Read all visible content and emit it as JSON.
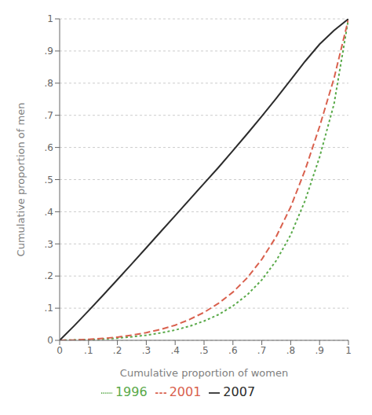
{
  "chart_data": {
    "type": "line",
    "xlabel": "Cumulative proportion of women",
    "ylabel": "Cumulative proportion of men",
    "xlim": [
      0,
      1
    ],
    "ylim": [
      0,
      1
    ],
    "xticks": [
      0,
      {
        "value": 0.1,
        "label": ".1"
      },
      {
        "value": 0.2,
        "label": ".2"
      },
      {
        "value": 0.3,
        "label": ".3"
      },
      {
        "value": 0.4,
        "label": ".4"
      },
      {
        "value": 0.5,
        "label": ".5"
      },
      {
        "value": 0.6,
        "label": ".6"
      },
      {
        "value": 0.7,
        "label": ".7"
      },
      {
        "value": 0.8,
        "label": ".8"
      },
      {
        "value": 0.9,
        "label": ".9"
      },
      1
    ],
    "yticks": [
      0,
      {
        "value": 0.1,
        "label": ".1"
      },
      {
        "value": 0.2,
        "label": ".2"
      },
      {
        "value": 0.3,
        "label": ".3"
      },
      {
        "value": 0.4,
        "label": ".4"
      },
      {
        "value": 0.5,
        "label": ".5"
      },
      {
        "value": 0.6,
        "label": ".6"
      },
      {
        "value": 0.7,
        "label": ".7"
      },
      {
        "value": 0.8,
        "label": ".8"
      },
      {
        "value": 0.9,
        "label": ".9"
      },
      1
    ],
    "grid": "y",
    "legend": "bottom",
    "x": [
      0.0,
      0.05,
      0.1,
      0.15,
      0.2,
      0.25,
      0.3,
      0.35,
      0.4,
      0.45,
      0.5,
      0.55,
      0.6,
      0.65,
      0.7,
      0.75,
      0.8,
      0.85,
      0.9,
      0.95,
      1.0
    ],
    "series": [
      {
        "name": "1996",
        "color": "#5aaa4a",
        "line_style": "dotted",
        "values": [
          0.0,
          0.001,
          0.002,
          0.004,
          0.007,
          0.011,
          0.016,
          0.023,
          0.032,
          0.044,
          0.06,
          0.08,
          0.107,
          0.142,
          0.188,
          0.248,
          0.328,
          0.435,
          0.57,
          0.735,
          1.0
        ]
      },
      {
        "name": "2001",
        "color": "#d9614e",
        "line_style": "dashed",
        "values": [
          0.0,
          0.001,
          0.003,
          0.006,
          0.01,
          0.016,
          0.024,
          0.034,
          0.047,
          0.065,
          0.087,
          0.115,
          0.15,
          0.195,
          0.252,
          0.323,
          0.415,
          0.53,
          0.665,
          0.815,
          1.0
        ]
      },
      {
        "name": "2007",
        "color": "#2c2c2c",
        "line_style": "solid",
        "values": [
          0.0,
          0.045,
          0.092,
          0.14,
          0.189,
          0.238,
          0.288,
          0.338,
          0.388,
          0.438,
          0.488,
          0.538,
          0.59,
          0.643,
          0.697,
          0.753,
          0.81,
          0.868,
          0.921,
          0.964,
          1.0
        ]
      }
    ]
  }
}
